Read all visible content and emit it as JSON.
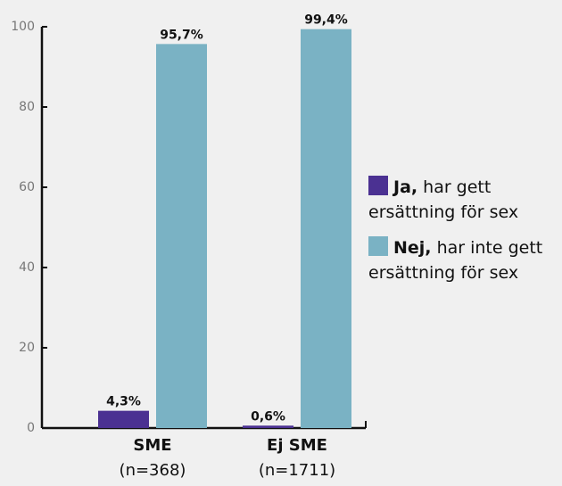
{
  "chart_data": {
    "type": "bar",
    "categories": [
      "SME",
      "Ej SME"
    ],
    "category_notes": [
      "(n=368)",
      "(n=1711)"
    ],
    "series": [
      {
        "name": "Ja, har gett ersättning för sex",
        "color": "#4b3192",
        "values": [
          4.3,
          0.6
        ],
        "value_labels": [
          "4,3%",
          "0,6%"
        ]
      },
      {
        "name": "Nej, har inte gett ersättning för sex",
        "color": "#7ab2c4",
        "values": [
          95.7,
          99.4
        ],
        "value_labels": [
          "95,7%",
          "99,4%"
        ]
      }
    ],
    "ylim": [
      0,
      100
    ],
    "yticks": [
      0,
      20,
      40,
      60,
      80,
      100
    ]
  }
}
